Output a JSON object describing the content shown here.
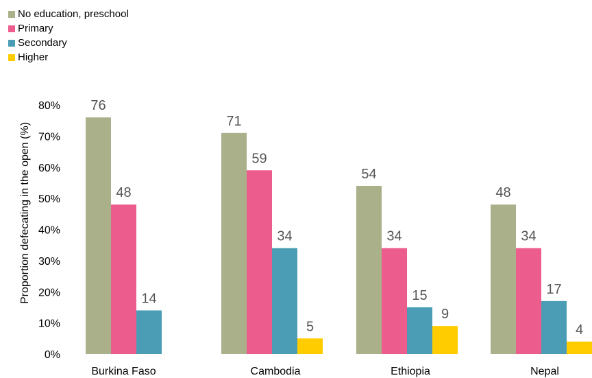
{
  "chart_data": {
    "type": "bar",
    "categories": [
      "Burkina Faso",
      "Cambodia",
      "Ethiopia",
      "Nepal"
    ],
    "series": [
      {
        "name": "No education, preschool",
        "values": [
          76,
          71,
          54,
          48
        ],
        "color": "#AAB08A"
      },
      {
        "name": "Primary",
        "values": [
          48,
          59,
          34,
          34
        ],
        "color": "#EC5C8C"
      },
      {
        "name": "Secondary",
        "values": [
          14,
          34,
          15,
          17
        ],
        "color": "#4A9DB5"
      },
      {
        "name": "Higher",
        "values": [
          null,
          5,
          9,
          4
        ],
        "color": "#FFCC00"
      }
    ],
    "value_labels": [
      [
        "76",
        "71",
        "54",
        "48"
      ],
      [
        "48",
        "59",
        "34",
        "34"
      ],
      [
        "14",
        "34",
        "15",
        "17"
      ],
      [
        "",
        "5",
        "9",
        "4"
      ]
    ],
    "ylabel": "Proportion defecating in the open (%)",
    "ylim": [
      0,
      80
    ],
    "yticks": [
      0,
      10,
      20,
      30,
      40,
      50,
      60,
      70,
      80
    ],
    "ytick_labels": [
      "0%",
      "10%",
      "20%",
      "30%",
      "40%",
      "50%",
      "60%",
      "70%",
      "80%"
    ],
    "grid": false,
    "legend_position": "top-left"
  }
}
